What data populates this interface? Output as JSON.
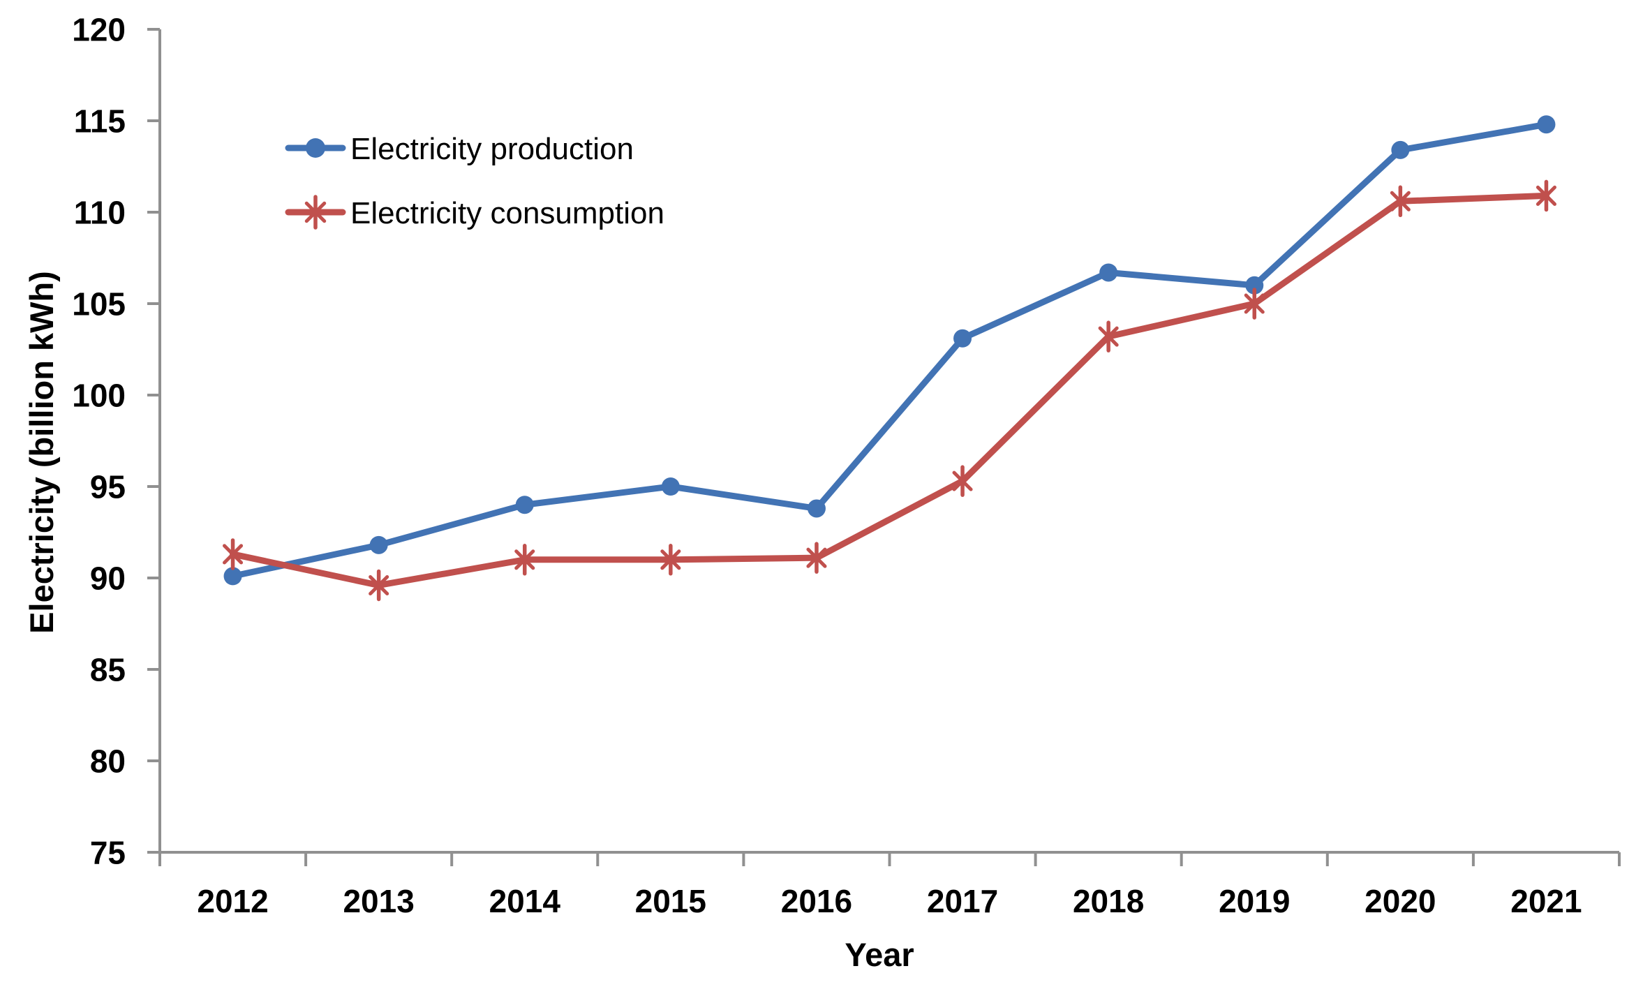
{
  "chart_data": {
    "type": "line",
    "title": "",
    "xlabel": "Year",
    "ylabel": "Electricity  (billion kWh)",
    "categories": [
      "2012",
      "2013",
      "2014",
      "2015",
      "2016",
      "2017",
      "2018",
      "2019",
      "2020",
      "2021"
    ],
    "series": [
      {
        "name": "Electricity production",
        "marker": "circle",
        "color": "#4273B4",
        "values": [
          90.1,
          91.8,
          94.0,
          95.0,
          93.8,
          103.1,
          106.7,
          106.0,
          113.4,
          114.8
        ]
      },
      {
        "name": "Electricity consumption",
        "marker": "asterisk",
        "color": "#C0504D",
        "values": [
          91.3,
          89.6,
          91.0,
          91.0,
          91.1,
          95.3,
          103.2,
          105.0,
          110.6,
          110.9
        ]
      }
    ],
    "ylim": [
      75,
      120
    ],
    "ytick_step": 5,
    "yticks": [
      120,
      115,
      110,
      105,
      100,
      95,
      90,
      85,
      80,
      75
    ],
    "grid": false,
    "legend_position": "inside-top-left",
    "axis_color": "#909090",
    "text_color": "#000000",
    "background": "#FFFFFF"
  }
}
